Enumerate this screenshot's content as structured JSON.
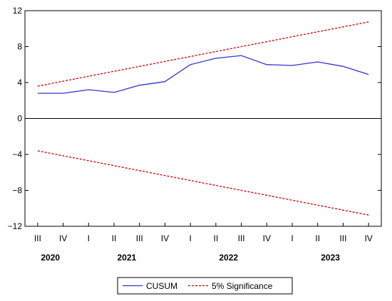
{
  "chart_data": {
    "type": "line",
    "categories": [
      "III",
      "IV",
      "I",
      "II",
      "III",
      "IV",
      "I",
      "II",
      "III",
      "IV",
      "I",
      "II",
      "III",
      "IV"
    ],
    "year_labels": [
      {
        "label": "2020",
        "quarter_index": 0.5
      },
      {
        "label": "2021",
        "quarter_index": 3.5
      },
      {
        "label": "2022",
        "quarter_index": 7.5
      },
      {
        "label": "2023",
        "quarter_index": 11.5
      }
    ],
    "ylim": [
      -12,
      12
    ],
    "yticks": [
      12,
      8,
      4,
      0,
      -4,
      -8,
      -12
    ],
    "ytick_labels": [
      "12",
      "8",
      "4",
      "0",
      "−4",
      "−8",
      "−12"
    ],
    "zero_line": true,
    "grid": false,
    "legend_position": "bottom",
    "series": [
      {
        "name": "CUSUM",
        "color": "#3333cc",
        "style": "solid",
        "values": [
          2.8,
          2.8,
          3.2,
          2.9,
          3.7,
          4.1,
          6.0,
          6.7,
          7.0,
          6.0,
          5.9,
          6.3,
          5.8,
          4.9
        ]
      },
      {
        "name": "5% Significance",
        "color": "#cc0000",
        "style": "dashed",
        "values": [
          3.6,
          4.15,
          4.7,
          5.25,
          5.8,
          6.35,
          6.9,
          7.45,
          8.0,
          8.55,
          9.1,
          9.65,
          10.2,
          10.75
        ],
        "lower_values": [
          -3.6,
          -4.15,
          -4.7,
          -5.25,
          -5.8,
          -6.35,
          -6.9,
          -7.45,
          -8.0,
          -8.55,
          -9.1,
          -9.65,
          -10.2,
          -10.75
        ]
      }
    ]
  }
}
